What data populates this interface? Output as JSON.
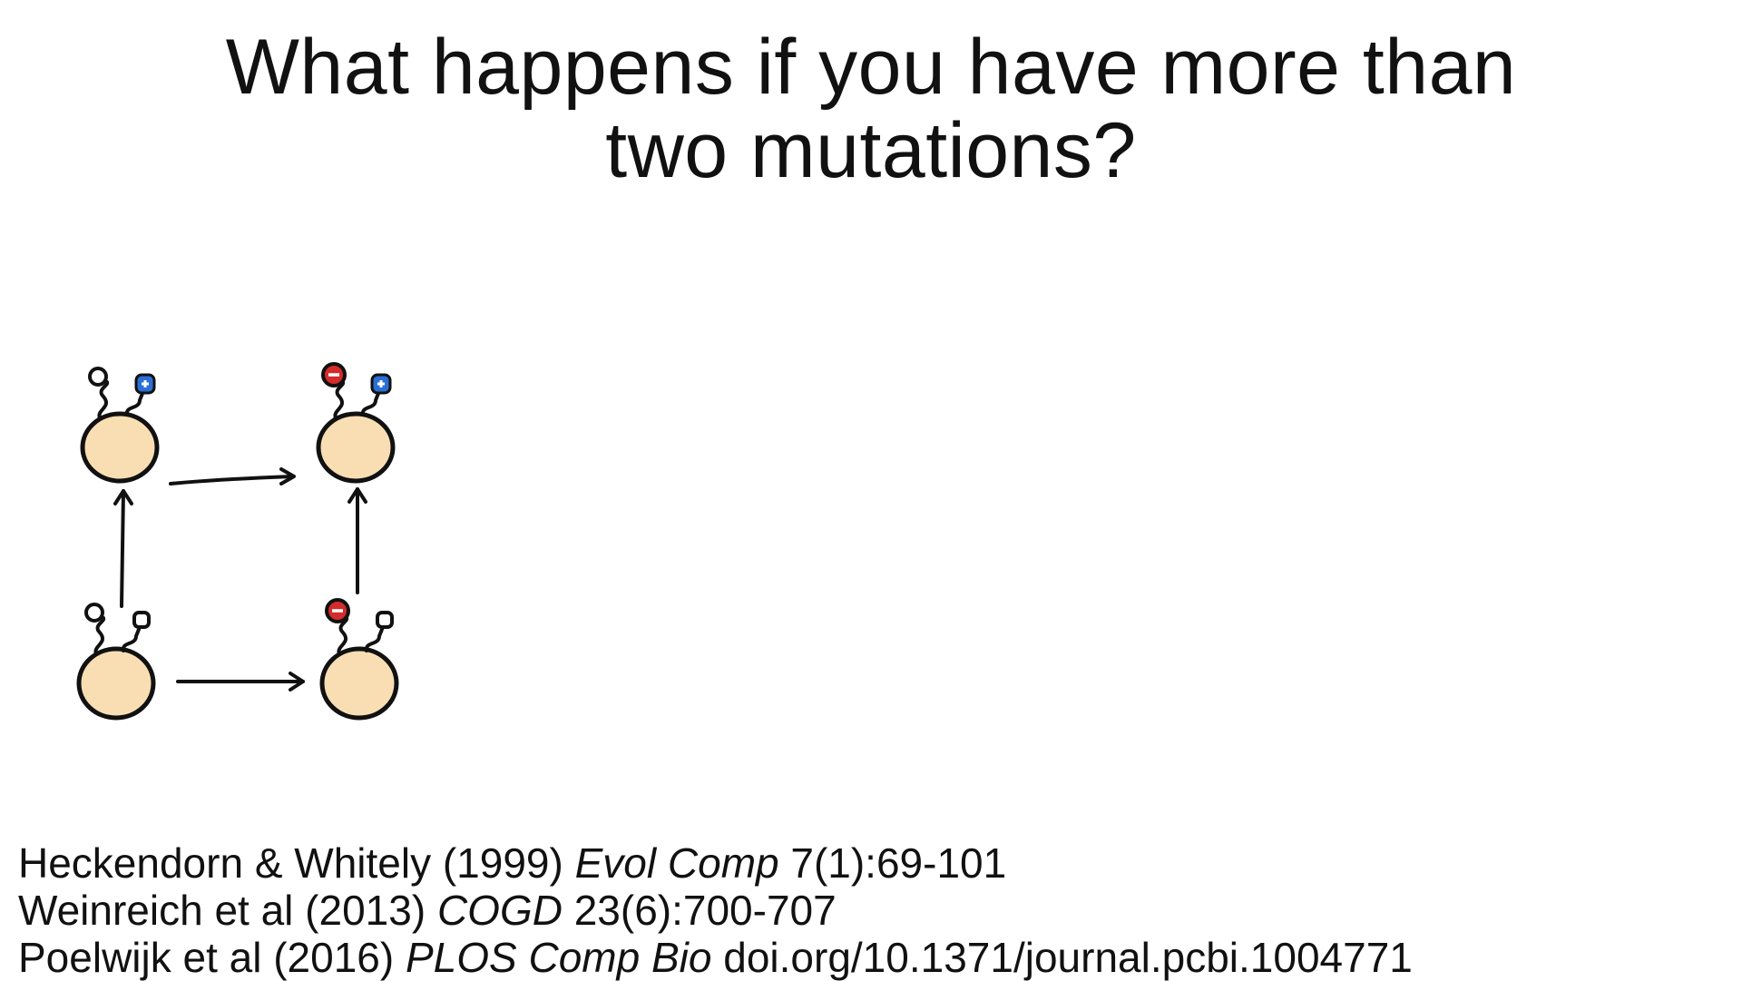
{
  "title": {
    "line1": "What happens if you have more than",
    "line2": "two mutations?"
  },
  "diagram": {
    "cell_color": "#f9deb4",
    "stroke_color": "#111111",
    "mutation_negative_color": "#d42b2b",
    "mutation_positive_color": "#2a6fd6",
    "icons": [
      "cell-wildtype-icon",
      "cell-red-mutation-icon",
      "cell-blue-mutation-icon",
      "cell-double-mutation-icon",
      "arrow-icon"
    ]
  },
  "references": [
    {
      "authors": "Heckendorn & Whitely (1999) ",
      "journal": "Evol Comp",
      "detail": " 7(1):69-101"
    },
    {
      "authors": "Weinreich et al (2013) ",
      "journal": "COGD",
      "detail": " 23(6):700-707"
    },
    {
      "authors": "Poelwijk et al (2016) ",
      "journal": "PLOS Comp Bio",
      "detail": " doi.org/10.1371/journal.pcbi.1004771"
    }
  ]
}
